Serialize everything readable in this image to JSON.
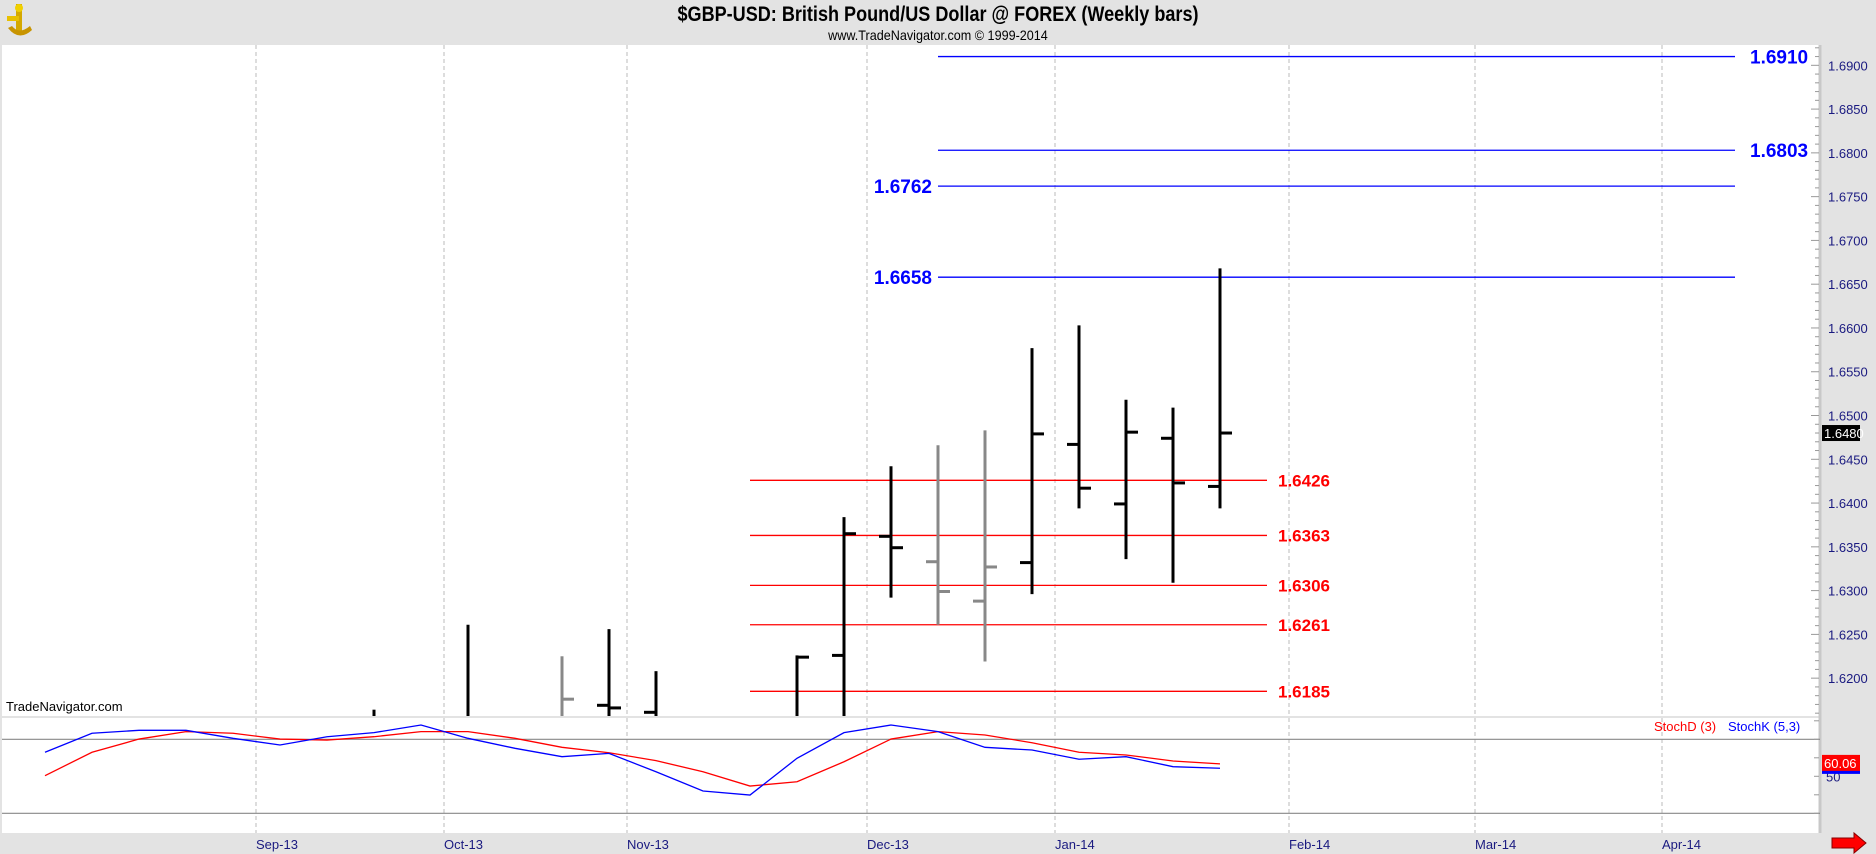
{
  "header": {
    "title": "$GBP-USD:  British Pound/US Dollar @ FOREX  (Weekly bars)",
    "subtitle": "www.TradeNavigator.com © 1999-2014"
  },
  "watermark": "TradeNavigator.com",
  "colors": {
    "up_bar": "#000000",
    "down_bar": "#888888",
    "fib_ext": "#0000ff",
    "fib_ret": "#ff0000",
    "stoch_d": "#ff0000",
    "stoch_k": "#0000ff"
  },
  "chart_data": [
    {
      "type": "ohlc",
      "title": "$GBP-USD Weekly bars",
      "ylim": [
        1.6158,
        1.6935
      ],
      "y_ticks": [
        "1.6900",
        "1.6850",
        "1.6800",
        "1.6750",
        "1.6700",
        "1.6650",
        "1.6600",
        "1.6550",
        "1.6500",
        "1.6450",
        "1.6400",
        "1.6350",
        "1.6300",
        "1.6250",
        "1.6200"
      ],
      "x_ticks": [
        "Sep-13",
        "Oct-13",
        "Nov-13",
        "Dec-13",
        "Jan-14",
        "Feb-14",
        "Mar-14",
        "Apr-14"
      ],
      "last_price": "1.6480",
      "bars": [
        {
          "i": 7,
          "o": null,
          "h": 1.6164,
          "l": null,
          "c": null,
          "down": false
        },
        {
          "i": 9,
          "o": null,
          "h": 1.6261,
          "l": null,
          "c": null,
          "down": false
        },
        {
          "i": 11,
          "o": null,
          "h": 1.6225,
          "l": null,
          "c": 1.6176,
          "down": true
        },
        {
          "i": 12,
          "o": 1.6169,
          "h": 1.6256,
          "l": null,
          "c": 1.6166,
          "down": false
        },
        {
          "i": 13,
          "o": 1.6161,
          "h": 1.6208,
          "l": null,
          "c": null,
          "down": false
        },
        {
          "i": 16,
          "o": null,
          "h": 1.6226,
          "l": null,
          "c": 1.6224,
          "down": false
        },
        {
          "i": 17,
          "o": 1.6226,
          "h": 1.6384,
          "l": null,
          "c": 1.6365,
          "down": false
        },
        {
          "i": 18,
          "o": 1.6362,
          "h": 1.6442,
          "l": 1.6292,
          "c": 1.6349,
          "down": false
        },
        {
          "i": 19,
          "o": 1.6333,
          "h": 1.6466,
          "l": 1.6261,
          "c": 1.6299,
          "down": true
        },
        {
          "i": 20,
          "o": 1.6288,
          "h": 1.6483,
          "l": 1.6219,
          "c": 1.6327,
          "down": true
        },
        {
          "i": 21,
          "o": 1.6332,
          "h": 1.6577,
          "l": 1.6296,
          "c": 1.6479,
          "down": false
        },
        {
          "i": 22,
          "o": 1.6467,
          "h": 1.6603,
          "l": 1.6394,
          "c": 1.6417,
          "down": false
        },
        {
          "i": 23,
          "o": 1.6399,
          "h": 1.6518,
          "l": 1.6336,
          "c": 1.6481,
          "down": false
        },
        {
          "i": 24,
          "o": 1.6474,
          "h": 1.6509,
          "l": 1.6309,
          "c": 1.6423,
          "down": false
        },
        {
          "i": 25,
          "o": 1.6419,
          "h": 1.6668,
          "l": 1.6394,
          "c": 1.648,
          "down": false
        }
      ],
      "levels": [
        {
          "value": 1.691,
          "label": "1.6910",
          "group": "ext",
          "label_side": "right"
        },
        {
          "value": 1.6803,
          "label": "1.6803",
          "group": "ext",
          "label_side": "right"
        },
        {
          "value": 1.6762,
          "label": "1.6762",
          "group": "ext",
          "label_side": "left"
        },
        {
          "value": 1.6658,
          "label": "1.6658",
          "group": "ext",
          "label_side": "left"
        },
        {
          "value": 1.6426,
          "label": "1.6426",
          "group": "ret",
          "label_side": "right"
        },
        {
          "value": 1.6363,
          "label": "1.6363",
          "group": "ret",
          "label_side": "right"
        },
        {
          "value": 1.6306,
          "label": "1.6306",
          "group": "ret",
          "label_side": "right"
        },
        {
          "value": 1.6261,
          "label": "1.6261",
          "group": "ret",
          "label_side": "right"
        },
        {
          "value": 1.6185,
          "label": "1.6185",
          "group": "ret",
          "label_side": "right"
        }
      ]
    },
    {
      "type": "line",
      "title": "Stochastic",
      "ylim": [
        4,
        97
      ],
      "reference_lines": [
        80,
        20
      ],
      "y_tick": "50",
      "legend": [
        {
          "name": "StochD (3)",
          "series": "d"
        },
        {
          "name": "StochK (5,3)",
          "series": "k"
        }
      ],
      "last_value": "60.06",
      "series": {
        "k": [
          69.5,
          84.9,
          87.3,
          87.3,
          80.8,
          75.4,
          82.1,
          85.4,
          91.6,
          80.8,
          72.7,
          65.9,
          68.6,
          53.7,
          38.1,
          34.8,
          64.6,
          85.4,
          91.6,
          86.2,
          73.5,
          71.3,
          63.8,
          65.9,
          57.8,
          56.5
        ],
        "d": [
          50.5,
          69.5,
          80.2,
          86.2,
          84.9,
          80.2,
          79.4,
          82.1,
          86.2,
          86.2,
          80.8,
          73.5,
          69.1,
          62.7,
          53.7,
          42.1,
          45.6,
          61.8,
          80.2,
          86.2,
          83.5,
          77.2,
          69.5,
          67.3,
          62.4,
          60.06
        ]
      }
    }
  ]
}
